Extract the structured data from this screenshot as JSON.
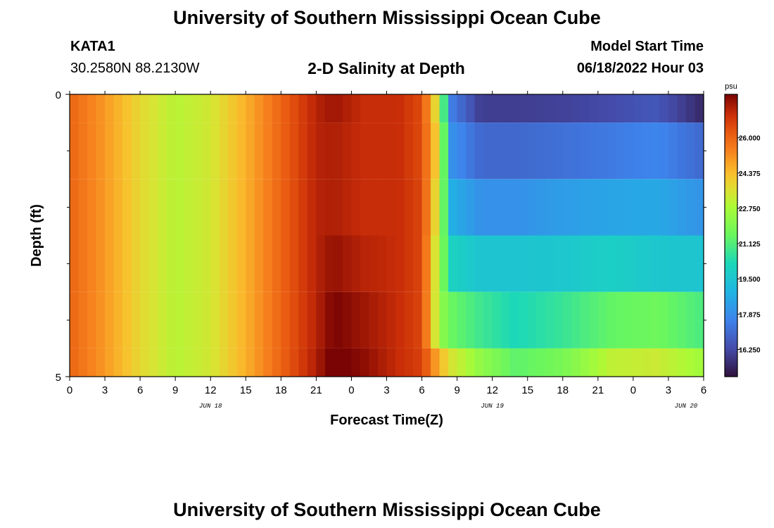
{
  "header": {
    "title": "University of Southern Mississippi Ocean Cube",
    "station": "KATA1",
    "coords": "30.2580N  88.2130W",
    "subtitle": "2-D Salinity at Depth",
    "model_start_label": "Model Start Time",
    "model_start_value": "06/18/2022 Hour 03"
  },
  "footer": {
    "title": "University of Southern Mississippi Ocean Cube"
  },
  "chart_data": {
    "type": "heatmap",
    "title": "2-D Salinity at Depth",
    "xlabel": "Forecast Time(Z)",
    "ylabel": "Depth (ft)",
    "x_hours_range": [
      0,
      54
    ],
    "x_ticks": [
      {
        "h": 0,
        "label": "0"
      },
      {
        "h": 3,
        "label": "3"
      },
      {
        "h": 6,
        "label": "6"
      },
      {
        "h": 9,
        "label": "9"
      },
      {
        "h": 12,
        "label": "12"
      },
      {
        "h": 15,
        "label": "15"
      },
      {
        "h": 18,
        "label": "18"
      },
      {
        "h": 21,
        "label": "21"
      },
      {
        "h": 24,
        "label": "0"
      },
      {
        "h": 27,
        "label": "3"
      },
      {
        "h": 30,
        "label": "6"
      },
      {
        "h": 33,
        "label": "9"
      },
      {
        "h": 36,
        "label": "12"
      },
      {
        "h": 39,
        "label": "15"
      },
      {
        "h": 42,
        "label": "18"
      },
      {
        "h": 45,
        "label": "21"
      },
      {
        "h": 48,
        "label": "0"
      },
      {
        "h": 51,
        "label": "3"
      },
      {
        "h": 54,
        "label": "6"
      }
    ],
    "date_labels": [
      {
        "h": 12,
        "label": "JUN 18"
      },
      {
        "h": 36,
        "label": "JUN 19"
      },
      {
        "h": 52.5,
        "label": "JUN 20"
      }
    ],
    "y_range": [
      0,
      5
    ],
    "y_ticks": [
      {
        "v": 0,
        "label": "0"
      },
      {
        "v": 5,
        "label": "5"
      }
    ],
    "y_minor_ticks": [
      1,
      2,
      3,
      4
    ],
    "colorbar": {
      "unit": "psu",
      "min": 15.0,
      "max": 28.0,
      "tick_values": [
        26.0,
        24.375,
        22.75,
        21.125,
        19.5,
        17.875,
        16.25
      ],
      "tick_labels": [
        "26.000",
        "24.375",
        "22.750",
        "21.125",
        "19.500",
        "17.875",
        "16.250"
      ]
    },
    "profile_times_h": [
      0,
      3,
      6,
      9,
      12,
      15,
      18,
      21,
      22.5,
      25,
      28,
      30,
      31.5,
      32.5,
      35,
      38,
      42,
      46,
      50,
      54
    ],
    "layers": [
      {
        "depth": [
          0.0,
          0.5
        ],
        "values": [
          26.0,
          25.0,
          23.8,
          23.0,
          23.4,
          24.6,
          26.0,
          27.3,
          27.6,
          27.1,
          27.1,
          26.5,
          23.0,
          17.5,
          16.0,
          16.0,
          16.1,
          16.3,
          16.6,
          15.5
        ]
      },
      {
        "depth": [
          0.5,
          1.5
        ],
        "values": [
          26.0,
          25.0,
          23.8,
          23.0,
          23.4,
          24.6,
          26.0,
          27.3,
          27.4,
          27.1,
          27.1,
          26.5,
          23.5,
          18.0,
          17.0,
          17.0,
          17.2,
          17.4,
          17.7,
          17.0
        ]
      },
      {
        "depth": [
          1.5,
          2.5
        ],
        "values": [
          26.0,
          25.0,
          23.8,
          23.0,
          23.4,
          24.6,
          26.0,
          27.3,
          27.4,
          27.1,
          27.1,
          26.6,
          23.0,
          18.8,
          18.0,
          18.0,
          18.3,
          18.5,
          18.6,
          18.0
        ]
      },
      {
        "depth": [
          2.5,
          3.5
        ],
        "values": [
          26.0,
          25.0,
          23.8,
          23.0,
          23.4,
          24.6,
          26.0,
          27.3,
          27.7,
          27.3,
          27.1,
          26.6,
          22.5,
          20.0,
          19.5,
          19.5,
          19.6,
          19.9,
          19.6,
          19.5
        ]
      },
      {
        "depth": [
          3.5,
          4.5
        ],
        "values": [
          26.0,
          25.0,
          23.8,
          23.0,
          23.4,
          24.6,
          26.0,
          27.3,
          28.0,
          27.6,
          27.1,
          26.6,
          22.4,
          21.5,
          20.8,
          20.2,
          20.7,
          21.4,
          21.6,
          21.0
        ]
      },
      {
        "depth": [
          4.5,
          5.0
        ],
        "values": [
          26.0,
          25.0,
          23.8,
          23.0,
          23.4,
          24.6,
          26.0,
          27.4,
          28.2,
          27.8,
          27.1,
          26.7,
          24.5,
          23.5,
          22.3,
          21.3,
          21.8,
          23.1,
          23.3,
          22.6
        ]
      }
    ]
  }
}
